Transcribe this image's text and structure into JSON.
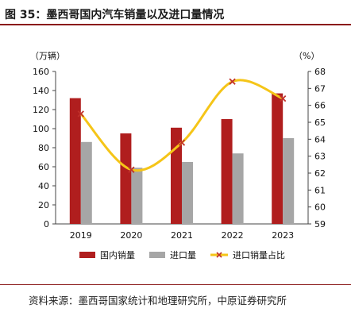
{
  "header": {
    "title": "图 35：墨西哥国内汽车销量以及进口量情况"
  },
  "footer": {
    "source": "资料来源：墨西哥国家统计和地理研究所，中原证券研究所"
  },
  "chart_data": {
    "type": "bar",
    "categories": [
      "2019",
      "2020",
      "2021",
      "2022",
      "2023"
    ],
    "series": [
      {
        "name": "国内销量",
        "kind": "bar",
        "axis": "left",
        "color": "#b01e1e",
        "values": [
          132,
          95,
          101,
          110,
          137
        ]
      },
      {
        "name": "进口量",
        "kind": "bar",
        "axis": "left",
        "color": "#a6a6a6",
        "values": [
          86,
          59,
          65,
          74,
          90
        ]
      },
      {
        "name": "进口销量占比",
        "kind": "line",
        "axis": "right",
        "color": "#f5c518",
        "marker_color": "#c0302a",
        "values": [
          65.5,
          62.2,
          63.8,
          67.4,
          66.4
        ]
      }
    ],
    "left_axis": {
      "unit": "（万辆）",
      "ylim": [
        0,
        160
      ],
      "ticks": [
        "0",
        "20",
        "40",
        "60",
        "80",
        "100",
        "120",
        "140",
        "160"
      ]
    },
    "right_axis": {
      "unit": "（%）",
      "ylim": [
        59,
        68
      ],
      "ticks": [
        "59",
        "60",
        "61",
        "62",
        "63",
        "64",
        "65",
        "66",
        "67",
        "68"
      ]
    },
    "legend_position": "bottom",
    "grid": false
  }
}
